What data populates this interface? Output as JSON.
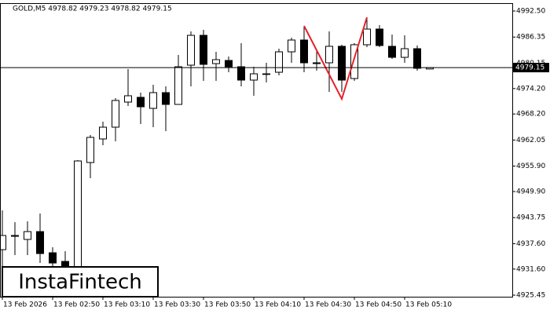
{
  "chart_data": {
    "type": "candlestick",
    "title": "GOLD,M5  4978.82 4979.23 4978.82 4979.15",
    "watermark": "InstaFintech",
    "categories": [
      "13 Feb 2026",
      null,
      null,
      null,
      "13 Feb 02:50",
      null,
      null,
      null,
      "13 Feb 03:10",
      null,
      null,
      null,
      "13 Feb 03:30",
      null,
      null,
      null,
      "13 Feb 03:50",
      null,
      null,
      null,
      "13 Feb 04:10",
      null,
      null,
      null,
      "13 Feb 04:30",
      null,
      null,
      null,
      "13 Feb 04:50",
      null,
      null,
      null,
      "13 Feb 05:10",
      null,
      null
    ],
    "open": [
      4936.19,
      4939.34,
      4938.6,
      4940.45,
      4935.45,
      4933.41,
      4930.27,
      4956.75,
      4962.31,
      4965.09,
      4971.01,
      4972.13,
      4969.53,
      4973.24,
      4970.46,
      4979.72,
      4986.76,
      4980.09,
      4980.83,
      4979.35,
      4976.2,
      4977.68,
      4978.05,
      4982.87,
      4985.65,
      4980.28,
      4980.28,
      4984.17,
      4976.57,
      4984.54,
      4988.24,
      4984.17,
      4981.57,
      4983.61,
      4978.82
    ],
    "high": [
      4945.46,
      4942.68,
      4942.86,
      4944.71,
      4936.75,
      4935.82,
      4957.31,
      4963.24,
      4966.38,
      4971.94,
      4978.79,
      4973.24,
      4975.09,
      4974.72,
      4982.13,
      4987.68,
      4988.06,
      4982.87,
      4981.76,
      4984.91,
      4979.35,
      4980.28,
      4983.61,
      4986.2,
      4988.98,
      4983.05,
      4987.68,
      4984.54,
      4984.91,
      4991.02,
      4989.17,
      4986.94,
      4986.76,
      4984.35,
      4979.23
    ],
    "low": [
      4932.12,
      4934.89,
      4934.89,
      4933.04,
      4932.12,
      4930.27,
      4930.27,
      4953.05,
      4960.83,
      4961.75,
      4970.09,
      4965.83,
      4965.09,
      4964.16,
      4970.46,
      4974.72,
      4976.02,
      4976.02,
      4978.05,
      4974.72,
      4972.5,
      4975.65,
      4977.31,
      4980.28,
      4978.05,
      4978.42,
      4973.42,
      4973.42,
      4976.02,
      4983.98,
      4983.98,
      4981.2,
      4980.28,
      4978.42,
      4978.82
    ],
    "close": [
      4939.53,
      4939.53,
      4940.45,
      4935.27,
      4933.04,
      4931.19,
      4957.12,
      4962.68,
      4965.09,
      4971.39,
      4972.5,
      4969.9,
      4973.24,
      4970.46,
      4979.35,
      4986.76,
      4979.91,
      4981.02,
      4979.35,
      4976.2,
      4977.68,
      4977.68,
      4982.87,
      4985.65,
      4980.28,
      4980.09,
      4984.17,
      4976.2,
      4984.54,
      4988.24,
      4984.35,
      4981.57,
      4983.61,
      4978.98,
      4979.15
    ],
    "up_color": "#ffffff",
    "down_color": "#000000",
    "last_price": 4979.15,
    "pattern": {
      "color": "#e8202a",
      "x": [
        24,
        27,
        29
      ],
      "values": [
        4988.98,
        4971.76,
        4991.02
      ]
    },
    "ylim": [
      4925.08,
      4994.17
    ],
    "yticks": [
      {
        "value": 4992.5,
        "label": "4992.50"
      },
      4986.35,
      4980.15,
      {
        "value": 4974.2,
        "label": "4974.20"
      },
      {
        "value": 4968.2,
        "label": "4968.20"
      },
      4962.05,
      {
        "value": 4955.9,
        "label": "4955.90"
      },
      {
        "value": 4949.9,
        "label": "4949.90"
      },
      4943.75,
      {
        "value": 4937.6,
        "label": "4937.60"
      },
      {
        "value": 4931.6,
        "label": "4931.60"
      },
      4925.45
    ]
  }
}
